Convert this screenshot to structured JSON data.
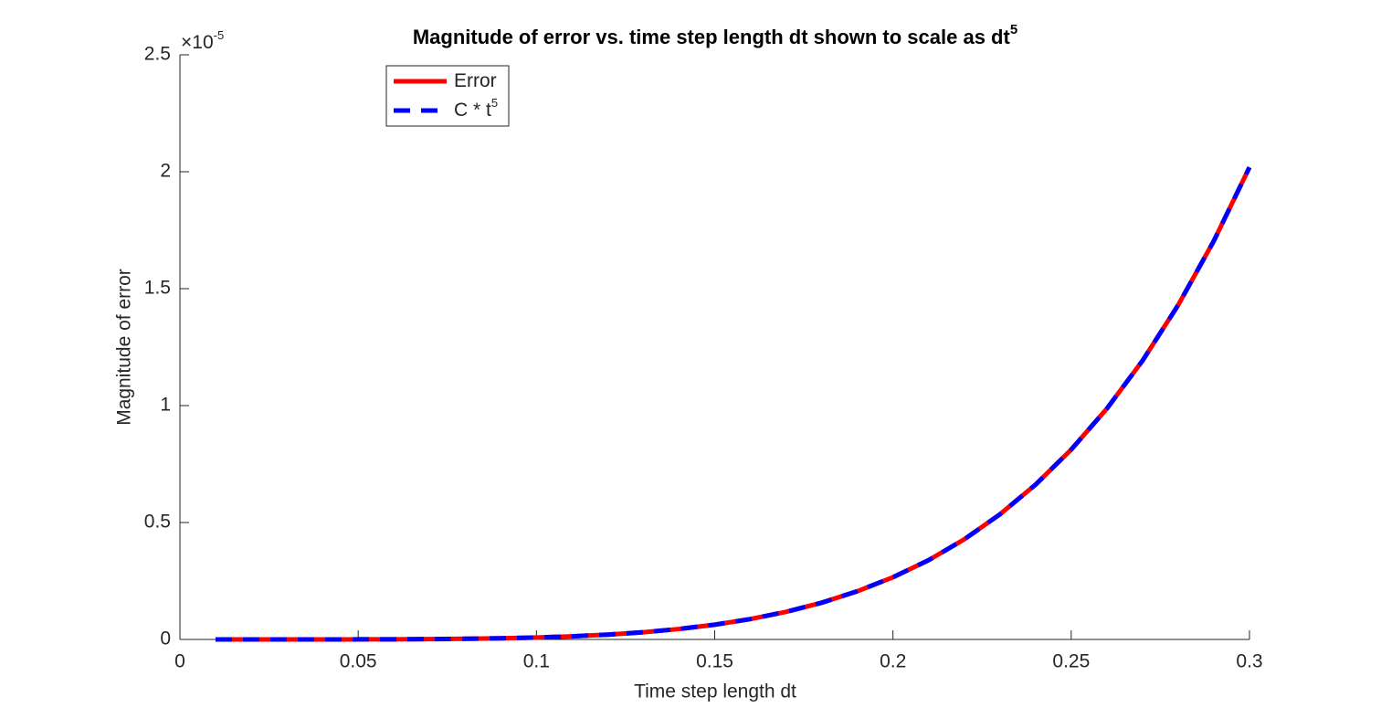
{
  "chart_data": {
    "type": "line",
    "title": "Magnitude of error vs. time step length dt shown to scale as dt",
    "title_superscript": "5",
    "xlabel": "Time step length dt",
    "ylabel": "Magnitude of error",
    "y_exponent": {
      "base": "×10",
      "power": "-5"
    },
    "x": [
      0.01,
      0.02,
      0.03,
      0.04,
      0.05,
      0.06,
      0.07,
      0.08,
      0.09,
      0.1,
      0.11,
      0.12,
      0.13,
      0.14,
      0.15,
      0.16,
      0.17,
      0.18,
      0.19,
      0.2,
      0.21,
      0.22,
      0.23,
      0.24,
      0.25,
      0.26,
      0.27,
      0.28,
      0.29,
      0.3
    ],
    "series": [
      {
        "name": "Error",
        "color": "#ff0000",
        "dash": false,
        "values": [
          0,
          3e-06,
          2e-05,
          8.5e-05,
          0.00026,
          0.00065,
          0.0014,
          0.0027,
          0.0049,
          0.0083,
          0.0134,
          0.0207,
          0.0309,
          0.0447,
          0.0631,
          0.0871,
          0.118,
          0.157,
          0.206,
          0.266,
          0.339,
          0.428,
          0.535,
          0.662,
          0.812,
          0.987,
          1.192,
          1.43,
          1.704,
          2.019
        ]
      },
      {
        "name": "C * t",
        "name_superscript": "5",
        "color": "#0000ff",
        "dash": true,
        "values": [
          0,
          3e-06,
          2e-05,
          8.5e-05,
          0.00026,
          0.00065,
          0.0014,
          0.0027,
          0.0049,
          0.0083,
          0.0134,
          0.0207,
          0.0309,
          0.0447,
          0.0631,
          0.0871,
          0.118,
          0.157,
          0.206,
          0.266,
          0.339,
          0.428,
          0.535,
          0.662,
          0.812,
          0.987,
          1.192,
          1.43,
          1.704,
          2.019
        ]
      }
    ],
    "xlim": [
      0,
      0.3
    ],
    "ylim": [
      0,
      2.5
    ],
    "xticks": [
      0,
      0.05,
      0.1,
      0.15,
      0.2,
      0.25,
      0.3
    ],
    "yticks": [
      0,
      0.5,
      1,
      1.5,
      2,
      2.5
    ],
    "grid": false,
    "legend": "northwest"
  }
}
